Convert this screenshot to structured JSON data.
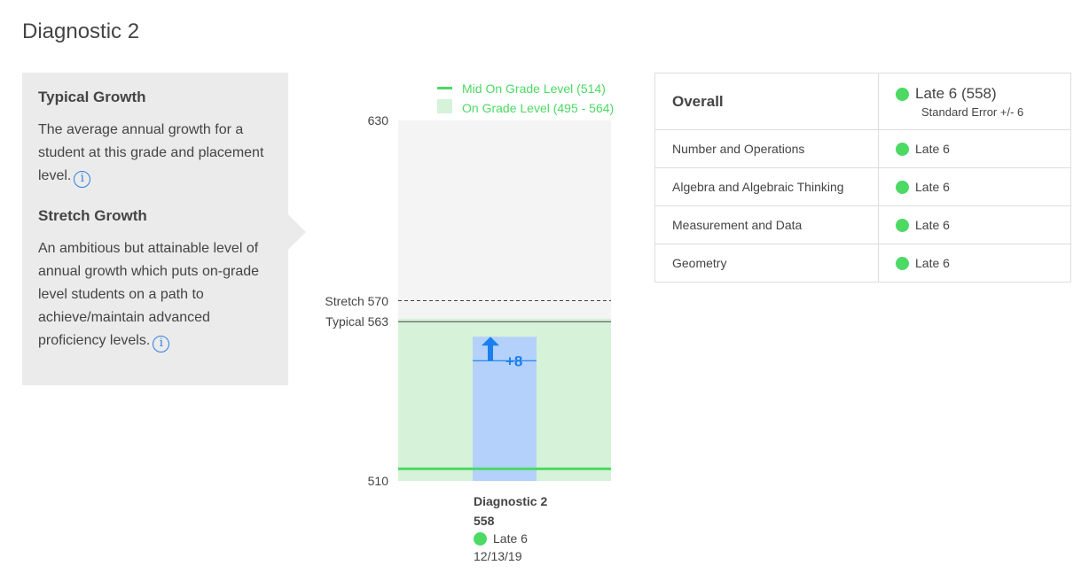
{
  "title": "Diagnostic 2",
  "info": {
    "typical_title": "Typical Growth",
    "typical_text": "The average annual growth for a student at this grade and placement level.",
    "stretch_title": "Stretch Growth",
    "stretch_text": "An ambitious but attainable level of annual growth which puts on-grade level students on a path to achieve/maintain advanced proficiency levels.",
    "icon": "info-icon"
  },
  "chart_data": {
    "type": "bar",
    "ylim": [
      510,
      630
    ],
    "y_ticks": [
      "630",
      "510"
    ],
    "legend": {
      "mid": "Mid On Grade Level (514)",
      "range": "On Grade Level (495 - 564)"
    },
    "mid_on_grade": 514,
    "on_grade_range": [
      495,
      564
    ],
    "stretch": {
      "label": "Stretch 570",
      "value": 570
    },
    "typical": {
      "label": "Typical 563",
      "value": 563
    },
    "bar": {
      "category": "Diagnostic 2",
      "value": 558,
      "previous": 550,
      "growth_label": "+8",
      "level": "Late 6",
      "date": "12/13/19"
    },
    "colors": {
      "green": "#4cd964",
      "band": "#d6f2d9",
      "bar": "#b3d1fb",
      "arrow": "#1a7fef",
      "bg": "#f5f4f5"
    }
  },
  "table": {
    "overall_label": "Overall",
    "overall_value": "Late 6 (558)",
    "standard_error": "Standard Error +/- 6",
    "rows": [
      {
        "domain": "Number and Operations",
        "level": "Late 6"
      },
      {
        "domain": "Algebra and Algebraic Thinking",
        "level": "Late 6"
      },
      {
        "domain": "Measurement and Data",
        "level": "Late 6"
      },
      {
        "domain": "Geometry",
        "level": "Late 6"
      }
    ]
  }
}
